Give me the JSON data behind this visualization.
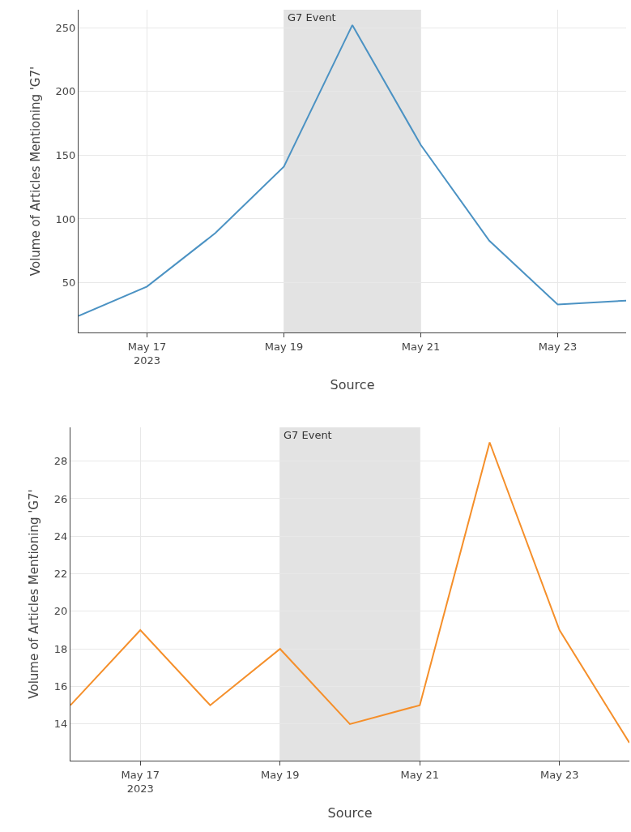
{
  "chart_data": [
    {
      "type": "line",
      "xlabel": "Source",
      "ylabel": "Volume of Articles Mentioning 'G7'",
      "x": [
        "2023-05-16",
        "2023-05-17",
        "2023-05-18",
        "2023-05-19",
        "2023-05-20",
        "2023-05-21",
        "2023-05-22",
        "2023-05-23",
        "2023-05-24"
      ],
      "series": [
        {
          "color": "#4b92c3",
          "values": [
            24,
            47,
            89,
            141,
            252,
            158,
            83,
            33,
            36
          ]
        }
      ],
      "xlim": [
        "2023-05-16",
        "2023-05-24"
      ],
      "xticks": [
        {
          "value": "2023-05-17",
          "label": "May 17\n2023"
        },
        {
          "value": "2023-05-19",
          "label": "May 19"
        },
        {
          "value": "2023-05-21",
          "label": "May 21"
        },
        {
          "value": "2023-05-23",
          "label": "May 23"
        }
      ],
      "ylim": [
        11,
        264
      ],
      "yticks": [
        50,
        100,
        150,
        200,
        250
      ],
      "bands": [
        {
          "axis": "x",
          "from": "2023-05-19",
          "to": "2023-05-21",
          "label": "G7 Event",
          "color": "#e3e3e3"
        }
      ],
      "grid": true,
      "line_style": "solid",
      "marker": "none"
    },
    {
      "type": "line",
      "xlabel": "Source",
      "ylabel": "Volume of Articles Mentioning 'G7'",
      "x": [
        "2023-05-16",
        "2023-05-17",
        "2023-05-18",
        "2023-05-19",
        "2023-05-20",
        "2023-05-21",
        "2023-05-22",
        "2023-05-23",
        "2023-05-24"
      ],
      "series": [
        {
          "color": "#f58f2a",
          "values": [
            15,
            19,
            15,
            18,
            14,
            15,
            29,
            19,
            13
          ]
        }
      ],
      "xlim": [
        "2023-05-16",
        "2023-05-24"
      ],
      "xticks": [
        {
          "value": "2023-05-17",
          "label": "May 17\n2023"
        },
        {
          "value": "2023-05-19",
          "label": "May 19"
        },
        {
          "value": "2023-05-21",
          "label": "May 21"
        },
        {
          "value": "2023-05-23",
          "label": "May 23"
        }
      ],
      "ylim": [
        12.05,
        29.8
      ],
      "yticks": [
        14,
        16,
        18,
        20,
        22,
        24,
        26,
        28
      ],
      "bands": [
        {
          "axis": "x",
          "from": "2023-05-19",
          "to": "2023-05-21",
          "label": "G7 Event",
          "color": "#e3e3e3"
        }
      ],
      "grid": true,
      "line_style": "solid",
      "marker": "none"
    }
  ]
}
